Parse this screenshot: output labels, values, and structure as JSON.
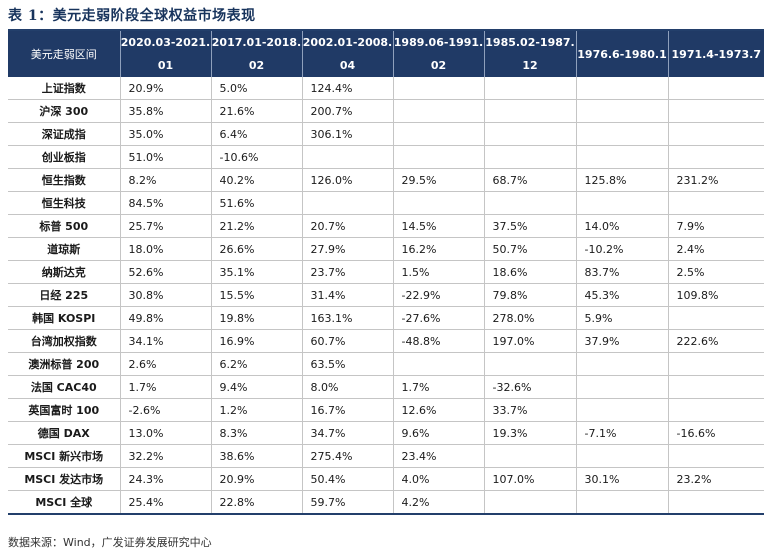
{
  "title": "表 1：美元走弱阶段全球权益市场表现",
  "table": {
    "headers": [
      [
        "美元走弱区间"
      ],
      [
        "2020.03-2021.",
        "01"
      ],
      [
        "2017.01-2018.",
        "02"
      ],
      [
        "2002.01-2008.",
        "04"
      ],
      [
        "1989.06-1991.",
        "02"
      ],
      [
        "1985.02-1987.",
        "12"
      ],
      [
        "1976.6-1980.1"
      ],
      [
        "1971.4-1973.7"
      ]
    ],
    "rows": [
      [
        "上证指数",
        "20.9%",
        "5.0%",
        "124.4%",
        "",
        "",
        "",
        ""
      ],
      [
        "沪深 300",
        "35.8%",
        "21.6%",
        "200.7%",
        "",
        "",
        "",
        ""
      ],
      [
        "深证成指",
        "35.0%",
        "6.4%",
        "306.1%",
        "",
        "",
        "",
        ""
      ],
      [
        "创业板指",
        "51.0%",
        "-10.6%",
        "",
        "",
        "",
        "",
        ""
      ],
      [
        "恒生指数",
        "8.2%",
        "40.2%",
        "126.0%",
        "29.5%",
        "68.7%",
        "125.8%",
        "231.2%"
      ],
      [
        "恒生科技",
        "84.5%",
        "51.6%",
        "",
        "",
        "",
        "",
        ""
      ],
      [
        "标普 500",
        "25.7%",
        "21.2%",
        "20.7%",
        "14.5%",
        "37.5%",
        "14.0%",
        "7.9%"
      ],
      [
        "道琼斯",
        "18.0%",
        "26.6%",
        "27.9%",
        "16.2%",
        "50.7%",
        "-10.2%",
        "2.4%"
      ],
      [
        "纳斯达克",
        "52.6%",
        "35.1%",
        "23.7%",
        "1.5%",
        "18.6%",
        "83.7%",
        "2.5%"
      ],
      [
        "日经 225",
        "30.8%",
        "15.5%",
        "31.4%",
        "-22.9%",
        "79.8%",
        "45.3%",
        "109.8%"
      ],
      [
        "韩国 KOSPI",
        "49.8%",
        "19.8%",
        "163.1%",
        "-27.6%",
        "278.0%",
        "5.9%",
        ""
      ],
      [
        "台湾加权指数",
        "34.1%",
        "16.9%",
        "60.7%",
        "-48.8%",
        "197.0%",
        "37.9%",
        "222.6%"
      ],
      [
        "澳洲标普 200",
        "2.6%",
        "6.2%",
        "63.5%",
        "",
        "",
        "",
        ""
      ],
      [
        "法国 CAC40",
        "1.7%",
        "9.4%",
        "8.0%",
        "1.7%",
        "-32.6%",
        "",
        ""
      ],
      [
        "英国富时 100",
        "-2.6%",
        "1.2%",
        "16.7%",
        "12.6%",
        "33.7%",
        "",
        ""
      ],
      [
        "德国 DAX",
        "13.0%",
        "8.3%",
        "34.7%",
        "9.6%",
        "19.3%",
        "-7.1%",
        "-16.6%"
      ],
      [
        "MSCI 新兴市场",
        "32.2%",
        "38.6%",
        "275.4%",
        "23.4%",
        "",
        "",
        ""
      ],
      [
        "MSCI 发达市场",
        "24.3%",
        "20.9%",
        "50.4%",
        "4.0%",
        "107.0%",
        "30.1%",
        "23.2%"
      ],
      [
        "MSCI 全球",
        "25.4%",
        "22.8%",
        "59.7%",
        "4.2%",
        "",
        "",
        ""
      ]
    ]
  },
  "source": "数据来源：Wind，广发证券发展研究中心"
}
